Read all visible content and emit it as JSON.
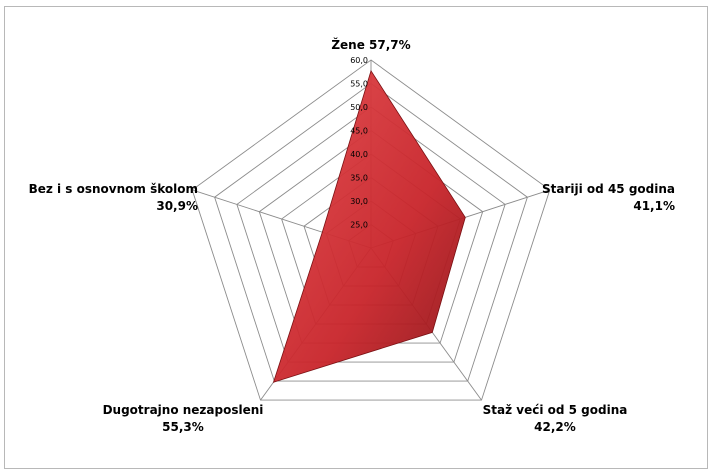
{
  "chart_data": {
    "type": "radar",
    "title": "",
    "categories": [
      {
        "name": "Žene",
        "value": 57.7,
        "value_label": "57,7%"
      },
      {
        "name": "Stariji od 45 godina",
        "value": 41.1,
        "value_label": "41,1%"
      },
      {
        "name": "Staž veći od 5 godina",
        "value": 42.2,
        "value_label": "42,2%"
      },
      {
        "name": "Dugotrajno nezaposleni",
        "value": 55.3,
        "value_label": "55,3%"
      },
      {
        "name": "Bez i s osnovnom školom",
        "value": 30.9,
        "value_label": "30,9%"
      }
    ],
    "series": [
      {
        "values": [
          57.7,
          41.1,
          42.2,
          55.3,
          30.9
        ]
      }
    ],
    "rlim": [
      20.0,
      60.0
    ],
    "ticks": [
      "25,0",
      "30,0",
      "35,0",
      "40,0",
      "45,0",
      "50,0",
      "55,0",
      "60,0"
    ],
    "grid": true,
    "legend": "none",
    "fill_color": "#c8242a",
    "grid_color": "#8c8c8c"
  }
}
